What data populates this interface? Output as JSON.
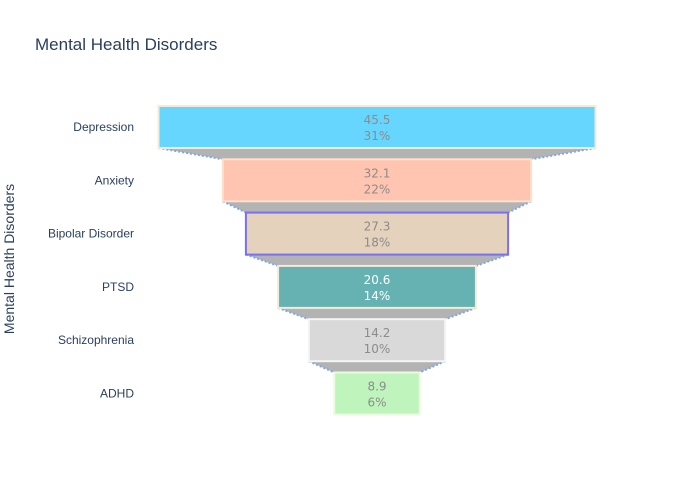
{
  "chart_data": {
    "type": "funnel",
    "title": "Mental Health Disorders",
    "ylabel": "Mental Health Disorders",
    "categories": [
      "Depression",
      "Anxiety",
      "Bipolar Disorder",
      "PTSD",
      "Schizophrenia",
      "ADHD"
    ],
    "values": [
      45.5,
      32.1,
      27.3,
      20.6,
      14.2,
      8.9
    ],
    "percent_labels": [
      "31%",
      "22%",
      "18%",
      "14%",
      "10%",
      "6%"
    ],
    "value_labels": [
      "45.5",
      "32.1",
      "27.3",
      "20.6",
      "14.2",
      "8.9"
    ],
    "colors": [
      "#66d6ff",
      "#ffc5b0",
      "#e4d2bc",
      "#66b2b2",
      "#d9d9d9",
      "#bff5bd"
    ],
    "border_colors": [
      "#f5ead7",
      "#ffe0cc",
      "#7b6ff2",
      "#f5ead7",
      "#f5f5f5",
      "#ecfbdf"
    ],
    "label_colors": [
      "#8c8c8c",
      "#8c8c8c",
      "#8c8c8c",
      "#ffffff",
      "#8c8c8c",
      "#8c8c8c"
    ],
    "connector_fill": "#b3b3b3",
    "connector_line": "#7fa6ee",
    "grid": false,
    "legend": "none"
  }
}
